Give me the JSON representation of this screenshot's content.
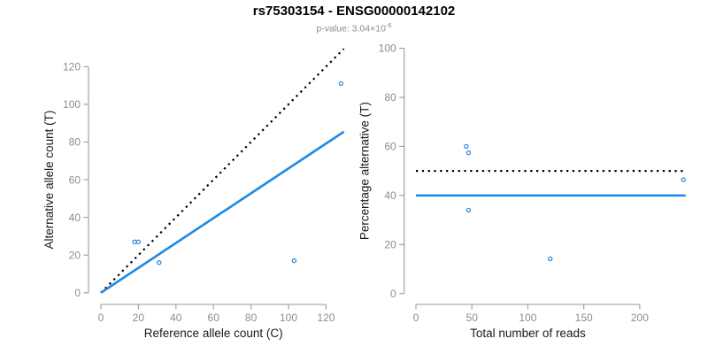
{
  "header": {
    "title": "rs75303154 - ENSG00000142102",
    "subtitle_label": "p-value: ",
    "subtitle_mantissa": "3.04×10",
    "subtitle_exponent": "-6"
  },
  "colors": {
    "accent_blue": "#1e87e5",
    "line_black": "#000000",
    "axis_line": "#9a9a9a",
    "tick_label": "#8c8c8c",
    "axis_title": "#1a1a1a",
    "subtitle": "#8c8c8c"
  },
  "chart_data": [
    {
      "type": "scatter",
      "side": "left",
      "xlabel": "Reference allele count (C)",
      "ylabel": "Alternative allele count (T)",
      "xticks": [
        0,
        20,
        40,
        60,
        80,
        100,
        120
      ],
      "yticks": [
        0,
        20,
        40,
        60,
        80,
        100,
        120
      ],
      "xlim": [
        -6.6,
        131.6
      ],
      "ylim": [
        -6.2,
        133.3
      ],
      "axis_x_span": [
        0,
        120
      ],
      "axis_y_span": [
        0,
        120
      ],
      "points": [
        [
          18,
          27
        ],
        [
          20,
          27
        ],
        [
          31,
          16
        ],
        [
          103,
          17
        ],
        [
          128,
          111
        ]
      ],
      "lines": [
        {
          "name": "identity-line",
          "style": "dotted",
          "color": "black",
          "slope": 1,
          "intercept": 0,
          "x1": 0,
          "x2": 129.5
        },
        {
          "name": "regression-line",
          "style": "solid",
          "color": "blue",
          "slope": 0.66,
          "intercept": 0,
          "x1": 0,
          "x2": 129.5
        }
      ]
    },
    {
      "type": "scatter",
      "side": "right",
      "xlabel": "Total number of reads",
      "ylabel": "Percentage alternative (T)",
      "xticks": [
        0,
        50,
        100,
        150,
        200
      ],
      "yticks": [
        0,
        20,
        40,
        60,
        80,
        100
      ],
      "xlim": [
        -10.5,
        242
      ],
      "ylim": [
        -4.4,
        102.7
      ],
      "axis_x_span": [
        0,
        200
      ],
      "axis_y_span": [
        0,
        100
      ],
      "points": [
        [
          45,
          60
        ],
        [
          47,
          57.4
        ],
        [
          47,
          34
        ],
        [
          120,
          14.2
        ],
        [
          239,
          46.4
        ]
      ],
      "lines": [
        {
          "name": "expected-line",
          "style": "dotted",
          "color": "black",
          "slope": 0,
          "intercept": 50,
          "x1": 0,
          "x2": 241
        },
        {
          "name": "mean-line",
          "style": "solid",
          "color": "blue",
          "slope": 0,
          "intercept": 40,
          "x1": 0,
          "x2": 241
        }
      ]
    }
  ]
}
